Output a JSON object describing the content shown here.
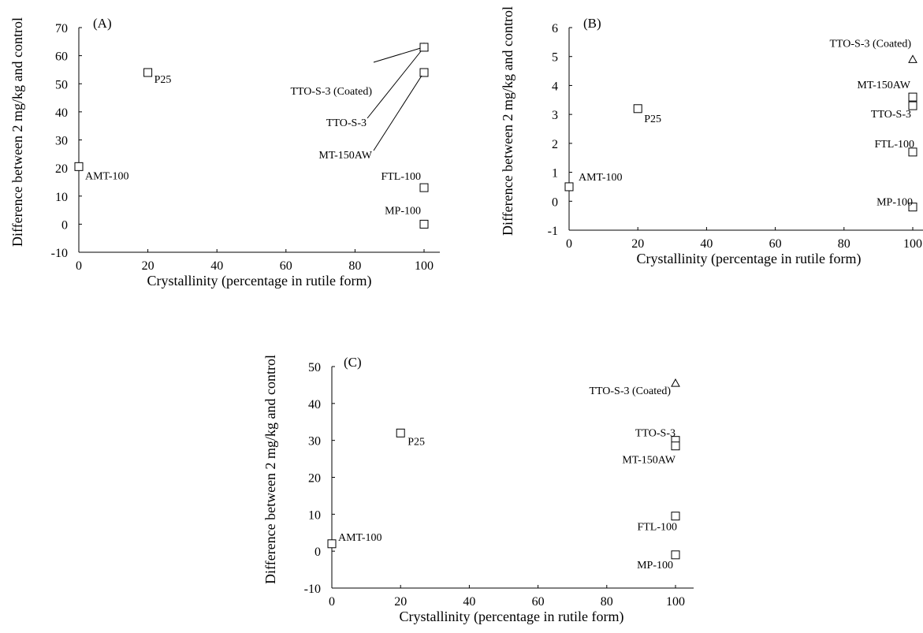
{
  "chart_data": [
    {
      "panel": "(A)",
      "type": "scatter",
      "xlabel": "Crystallinity (percentage in rutile form)",
      "ylabel": "Difference between 2 mg/kg and control",
      "xlim": [
        0,
        100
      ],
      "ylim": [
        -10,
        70
      ],
      "xticks": [
        0,
        20,
        40,
        60,
        80,
        100
      ],
      "yticks": [
        -10,
        0,
        10,
        20,
        30,
        40,
        50,
        60,
        70
      ],
      "points": [
        {
          "label": "AMT-100",
          "x": 0,
          "y": 20.5,
          "marker": "square"
        },
        {
          "label": "P25",
          "x": 20,
          "y": 54,
          "marker": "square"
        },
        {
          "label": "TTO-S-3 (Coated)",
          "x": 100,
          "y": 63,
          "marker": "triangle"
        },
        {
          "label": "TTO-S-3",
          "x": 100,
          "y": 63,
          "marker": "square"
        },
        {
          "label": "MT-150AW",
          "x": 100,
          "y": 54,
          "marker": "square"
        },
        {
          "label": "FTL-100",
          "x": 100,
          "y": 13,
          "marker": "square"
        },
        {
          "label": "MP-100",
          "x": 100,
          "y": 0,
          "marker": "square"
        }
      ]
    },
    {
      "panel": "(B)",
      "type": "scatter",
      "xlabel": "Crystallinity (percentage in rutile form)",
      "ylabel": "Difference between 2 mg/kg and control",
      "xlim": [
        0,
        100
      ],
      "ylim": [
        -1,
        6
      ],
      "xticks": [
        0,
        20,
        40,
        60,
        80,
        100
      ],
      "yticks": [
        -1,
        0,
        1,
        2,
        3,
        4,
        5,
        6
      ],
      "points": [
        {
          "label": "AMT-100",
          "x": 0,
          "y": 0.5,
          "marker": "square"
        },
        {
          "label": "P25",
          "x": 20,
          "y": 3.2,
          "marker": "square"
        },
        {
          "label": "TTO-S-3 (Coated)",
          "x": 100,
          "y": 4.9,
          "marker": "triangle"
        },
        {
          "label": "MT-150AW",
          "x": 100,
          "y": 3.6,
          "marker": "square"
        },
        {
          "label": "TTO-S-3",
          "x": 100,
          "y": 3.3,
          "marker": "square"
        },
        {
          "label": "FTL-100",
          "x": 100,
          "y": 1.7,
          "marker": "square"
        },
        {
          "label": "MP-100",
          "x": 100,
          "y": -0.2,
          "marker": "square"
        }
      ]
    },
    {
      "panel": "(C)",
      "type": "scatter",
      "xlabel": "Crystallinity (percentage in rutile form)",
      "ylabel": "Difference between 2 mg/kg and control",
      "xlim": [
        0,
        100
      ],
      "ylim": [
        -10,
        50
      ],
      "xticks": [
        0,
        20,
        40,
        60,
        80,
        100
      ],
      "yticks": [
        -10,
        0,
        10,
        20,
        30,
        40,
        50
      ],
      "points": [
        {
          "label": "AMT-100",
          "x": 0,
          "y": 2,
          "marker": "square"
        },
        {
          "label": "P25",
          "x": 20,
          "y": 32,
          "marker": "square"
        },
        {
          "label": "TTO-S-3 (Coated)",
          "x": 100,
          "y": 45.5,
          "marker": "triangle"
        },
        {
          "label": "TTO-S-3",
          "x": 100,
          "y": 30,
          "marker": "square"
        },
        {
          "label": "MT-150AW",
          "x": 100,
          "y": 28.5,
          "marker": "square"
        },
        {
          "label": "FTL-100",
          "x": 100,
          "y": 9.5,
          "marker": "square"
        },
        {
          "label": "MP-100",
          "x": 100,
          "y": -1,
          "marker": "square"
        }
      ]
    }
  ]
}
